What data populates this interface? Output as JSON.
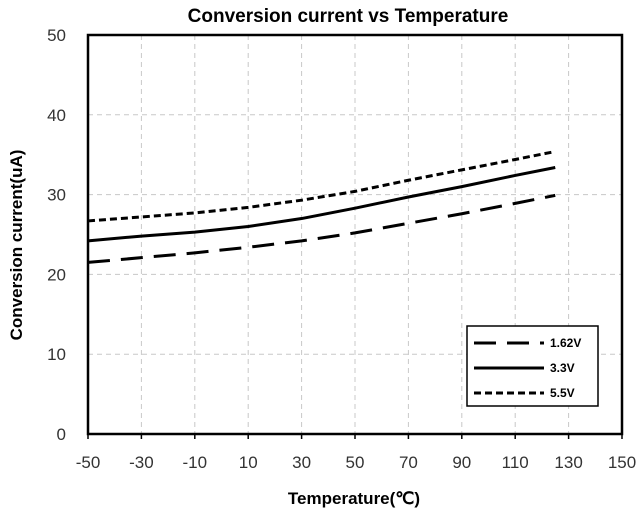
{
  "chart_data": {
    "type": "line",
    "title": "Conversion current vs Temperature",
    "xlabel": "Temperature(℃)",
    "ylabel": "Conversion current(uA)",
    "xlim": [
      -50,
      150
    ],
    "ylim": [
      0,
      50
    ],
    "xticks": [
      -50,
      -30,
      -10,
      10,
      30,
      50,
      70,
      90,
      110,
      130,
      150
    ],
    "yticks": [
      0,
      10,
      20,
      30,
      40,
      50
    ],
    "grid": true,
    "legend_position": "bottom-right",
    "x": [
      -50,
      -30,
      -10,
      10,
      30,
      50,
      70,
      90,
      110,
      125
    ],
    "series": [
      {
        "name": "1.62V",
        "style": "long-dash",
        "values": [
          21.5,
          22.1,
          22.7,
          23.4,
          24.2,
          25.2,
          26.4,
          27.6,
          28.9,
          29.9
        ]
      },
      {
        "name": "3.3V",
        "style": "solid",
        "values": [
          24.2,
          24.8,
          25.3,
          26.0,
          27.0,
          28.3,
          29.7,
          31.0,
          32.4,
          33.4
        ]
      },
      {
        "name": "5.5V",
        "style": "short-dash",
        "values": [
          26.7,
          27.2,
          27.7,
          28.4,
          29.3,
          30.4,
          31.8,
          33.1,
          34.4,
          35.4
        ]
      }
    ]
  }
}
